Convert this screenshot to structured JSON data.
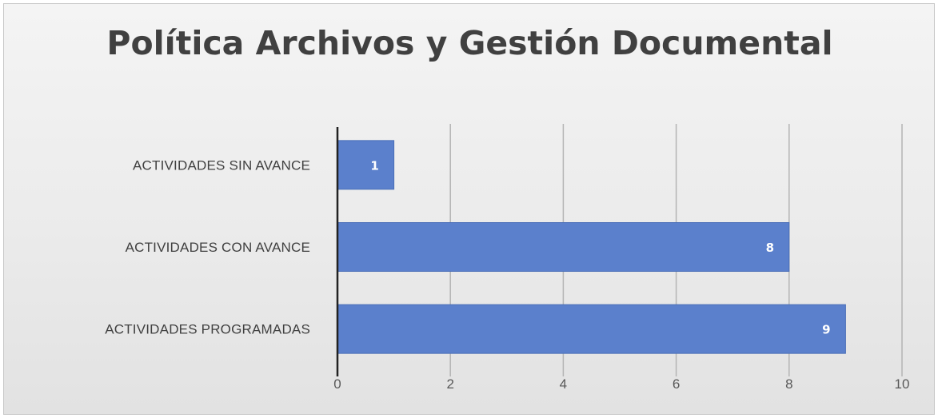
{
  "chart_data": {
    "type": "bar",
    "orientation": "horizontal",
    "title": "Política Archivos y Gestión Documental",
    "categories": [
      "ACTIVIDADES SIN AVANCE",
      "ACTIVIDADES CON AVANCE",
      "ACTIVIDADES PROGRAMADAS"
    ],
    "values": [
      1,
      8,
      9
    ],
    "xlim": [
      0,
      10
    ],
    "xticks": [
      0,
      2,
      4,
      6,
      8,
      10
    ],
    "grid": true,
    "legend": "none",
    "data_labels": true,
    "colors": {
      "bar": "#5b80cc",
      "bar_edge": "#4a6fb8",
      "gridline": "#b4b4b4",
      "axis": "#222222"
    }
  }
}
